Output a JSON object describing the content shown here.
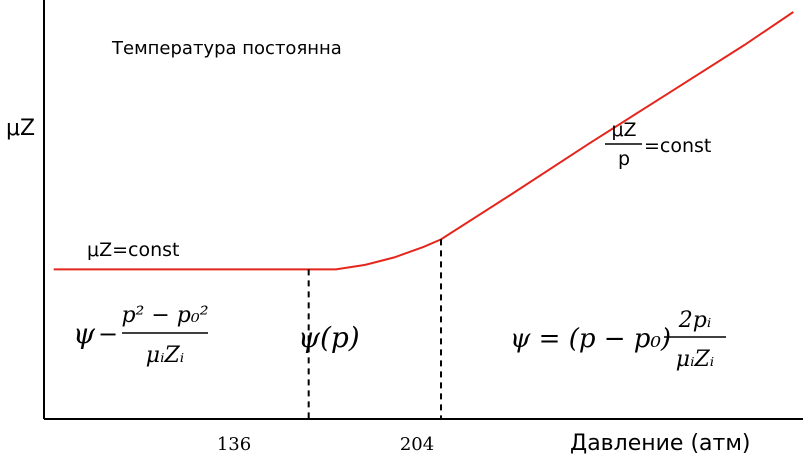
{
  "chart_data": {
    "type": "line",
    "title": "Температура постоянна",
    "ylabel": "μZ",
    "xlabel": "Давление (атм)",
    "x_ticks": [
      136,
      204
    ],
    "x_tick_labels": [
      "136",
      "204"
    ],
    "series": [
      {
        "values": [
          [
            5,
            1.0
          ],
          [
            136,
            1.0
          ],
          [
            150,
            1.0
          ],
          [
            165,
            1.03
          ],
          [
            180,
            1.08
          ],
          [
            195,
            1.15
          ],
          [
            204,
            1.2
          ],
          [
            240,
            1.5
          ],
          [
            280,
            1.84
          ],
          [
            320,
            2.17
          ],
          [
            360,
            2.5
          ],
          [
            385,
            2.72
          ]
        ]
      }
    ],
    "xlim": [
      0,
      390
    ],
    "ylim": [
      0,
      2.8
    ],
    "line_color": "#e5261d",
    "grid": false,
    "annotations": {
      "left_line": "μZ=const",
      "right_line_num": "μZ",
      "right_line_den": "p",
      "right_line_eq": "=const",
      "region1": {
        "psi": "ψ",
        "op": "−",
        "num": "p² − p₀²",
        "den": "μᵢZᵢ"
      },
      "region2": {
        "expr": "ψ(p)"
      },
      "region3": {
        "lhs": "ψ = (p − p₀)",
        "num": "2pᵢ",
        "den": "μᵢZᵢ"
      }
    }
  }
}
